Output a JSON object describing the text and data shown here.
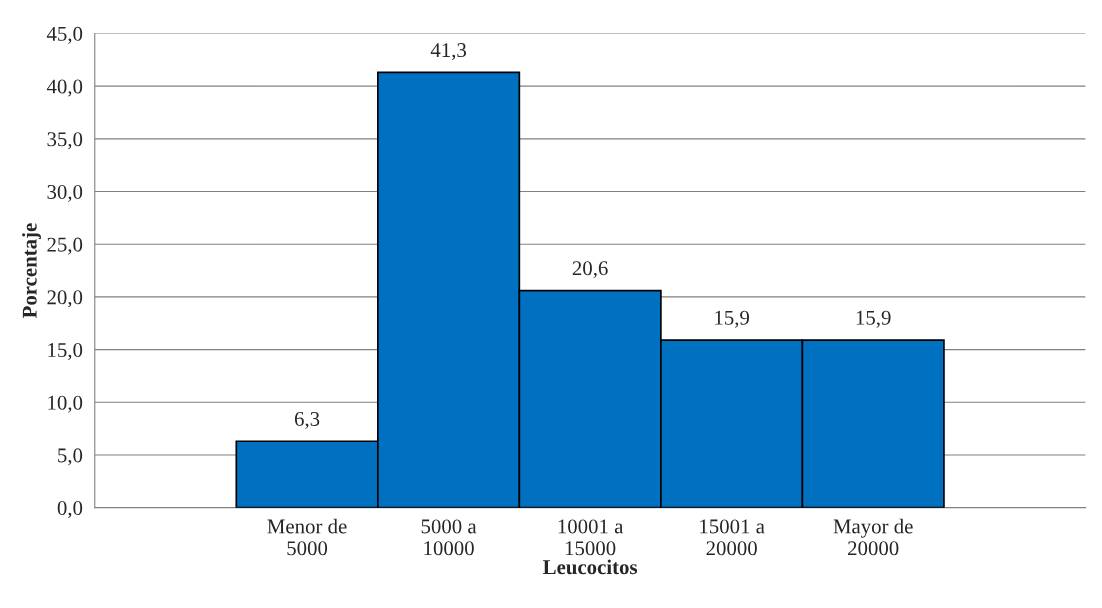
{
  "chart_data": {
    "type": "bar",
    "xlabel": "Leucocitos",
    "ylabel": "Porcentaje",
    "categories": [
      null,
      "Menor de\n5000",
      "5000 a\n10000",
      "10001 a\n15000",
      "15001 a\n20000",
      "Mayor de\n20000",
      null
    ],
    "values": [
      null,
      6.3,
      41.3,
      20.6,
      15.9,
      15.9,
      null
    ],
    "value_labels": [
      null,
      "6,3",
      "41,3",
      "20,6",
      "15,9",
      "15,9",
      null
    ],
    "color": "#0070c0",
    "ylim": [
      0,
      45
    ],
    "yticks": [
      {
        "value": 0,
        "label": "0,0"
      },
      {
        "value": 5,
        "label": "5,0"
      },
      {
        "value": 10,
        "label": "10,0"
      },
      {
        "value": 15,
        "label": "15,0"
      },
      {
        "value": 20,
        "label": "20,0"
      },
      {
        "value": 25,
        "label": "25,0"
      },
      {
        "value": 30,
        "label": "30,0"
      },
      {
        "value": 35,
        "label": "35,0"
      },
      {
        "value": 40,
        "label": "40,0"
      },
      {
        "value": 45,
        "label": "45,0"
      }
    ],
    "grid": "y",
    "legend": false
  }
}
